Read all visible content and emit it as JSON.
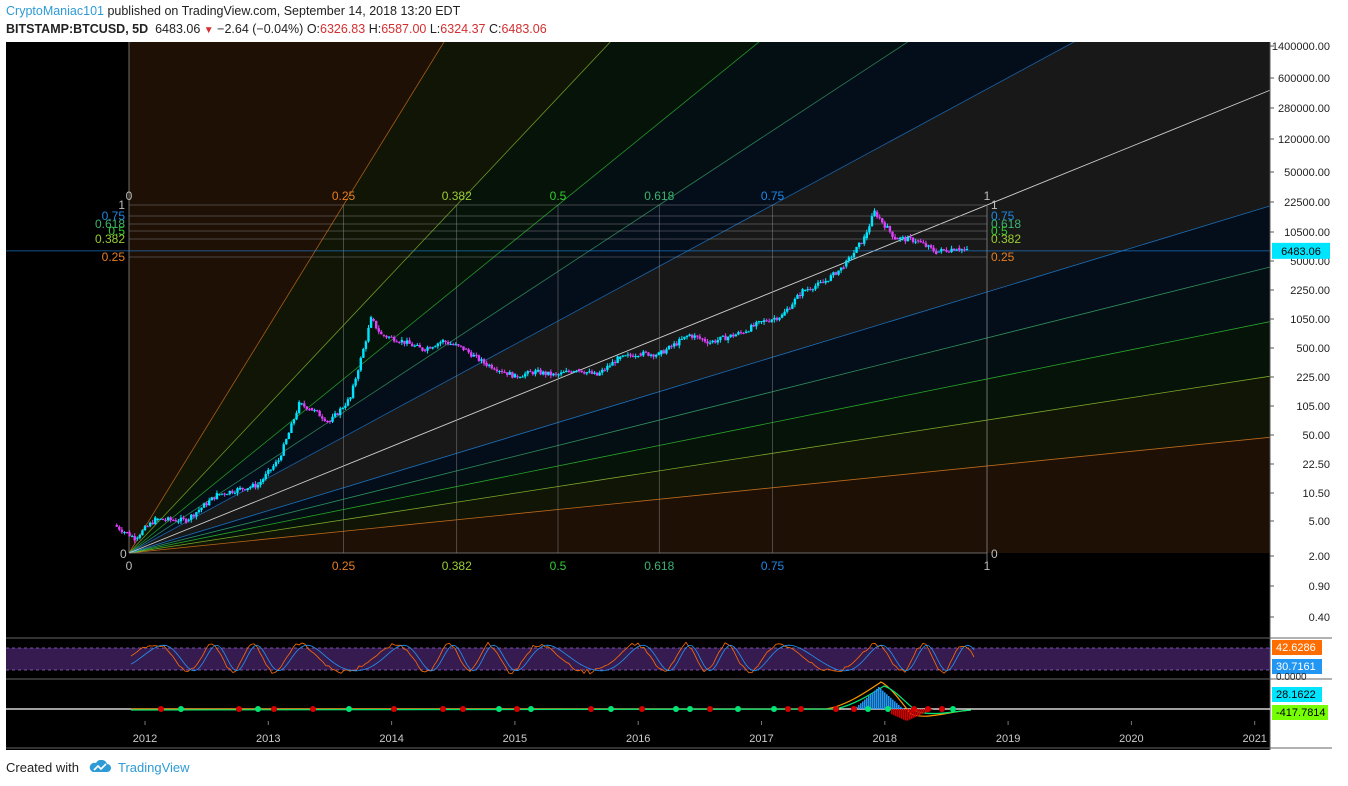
{
  "header": {
    "author": "CryptoManiac101",
    "published_text": "published on TradingView.com, September 14, 2018 13:20 EDT",
    "symbol": "BITSTAMP:BTCUSD, 5D",
    "last": "6483.06",
    "change": "−2.64 (−0.04%)",
    "open_label": "O:",
    "open": "6326.83",
    "high_label": "H:",
    "high": "6587.00",
    "low_label": "L:",
    "low": "6324.37",
    "close_label": "C:",
    "close": "6483.06"
  },
  "footer": {
    "created_with": "Created with",
    "brand": "TradingView"
  },
  "colors": {
    "background": "#000000",
    "bull": "#00e5ff",
    "bear": "#e040fb",
    "fan": [
      "#e67e22",
      "#9acd32",
      "#32cd32",
      "#3cb371",
      "#1e88e5",
      "#bdbdbd"
    ],
    "price_tag": "#00e5ff",
    "stoch_k": "#ff6d00",
    "stoch_d": "#2196f3",
    "macd_up": "#00e676",
    "macd_down": "#d50000"
  },
  "chart_data": {
    "type": "candlestick",
    "scale": "log",
    "y_tick_labels": [
      "1400000.00",
      "600000.00",
      "280000.00",
      "120000.00",
      "50000.00",
      "22500.00",
      "10500.00",
      "5000.00",
      "2250.00",
      "1050.00",
      "500.00",
      "225.00",
      "105.00",
      "50.00",
      "22.50",
      "10.50",
      "5.00",
      "2.00",
      "0.90",
      "0.40"
    ],
    "x_tick_labels": [
      "2012",
      "2013",
      "2014",
      "2015",
      "2016",
      "2017",
      "2018",
      "2019",
      "2020",
      "2021"
    ],
    "price_series": [
      [
        "2011-10",
        4.5
      ],
      [
        "2011-12",
        3.2
      ],
      [
        "2012-02",
        5.2
      ],
      [
        "2012-05",
        5.1
      ],
      [
        "2012-08",
        10
      ],
      [
        "2012-10",
        11.5
      ],
      [
        "2012-12",
        13
      ],
      [
        "2013-02",
        25
      ],
      [
        "2013-04",
        110
      ],
      [
        "2013-05",
        100
      ],
      [
        "2013-07",
        70
      ],
      [
        "2013-09",
        130
      ],
      [
        "2013-11",
        1050
      ],
      [
        "2013-12",
        700
      ],
      [
        "2014-02",
        600
      ],
      [
        "2014-04",
        480
      ],
      [
        "2014-06",
        600
      ],
      [
        "2014-08",
        490
      ],
      [
        "2014-10",
        330
      ],
      [
        "2015-01",
        230
      ],
      [
        "2015-03",
        260
      ],
      [
        "2015-05",
        235
      ],
      [
        "2015-07",
        280
      ],
      [
        "2015-09",
        235
      ],
      [
        "2015-11",
        370
      ],
      [
        "2016-01",
        430
      ],
      [
        "2016-03",
        420
      ],
      [
        "2016-06",
        700
      ],
      [
        "2016-08",
        580
      ],
      [
        "2016-11",
        735
      ],
      [
        "2017-01",
        970
      ],
      [
        "2017-03",
        1150
      ],
      [
        "2017-05",
        2200
      ],
      [
        "2017-07",
        2750
      ],
      [
        "2017-09",
        4300
      ],
      [
        "2017-11",
        9000
      ],
      [
        "2017-12",
        17500
      ],
      [
        "2018-02",
        9000
      ],
      [
        "2018-04",
        8500
      ],
      [
        "2018-06",
        6300
      ],
      [
        "2018-08",
        7000
      ],
      [
        "2018-09",
        6483.06
      ]
    ],
    "last_price": "6483.06",
    "gann_fan": {
      "levels": [
        "0",
        "0.25",
        "0.382",
        "0.5",
        "0.618",
        "0.75",
        "1"
      ],
      "axis_levels_left": [
        "1",
        "0.75",
        "0.618",
        "0.5",
        "0.382",
        "0.25"
      ],
      "axis_levels_right": [
        "1",
        "0.75",
        "0.618",
        "0.5",
        "0.382",
        "0.25"
      ],
      "bottom_zero_right": "0"
    },
    "stoch_rsi": {
      "k": "42.6286",
      "d": "30.7161",
      "tick_label": "0.0000"
    },
    "macd": {
      "signal": "28.1622",
      "histogram": "-417.7814"
    }
  }
}
